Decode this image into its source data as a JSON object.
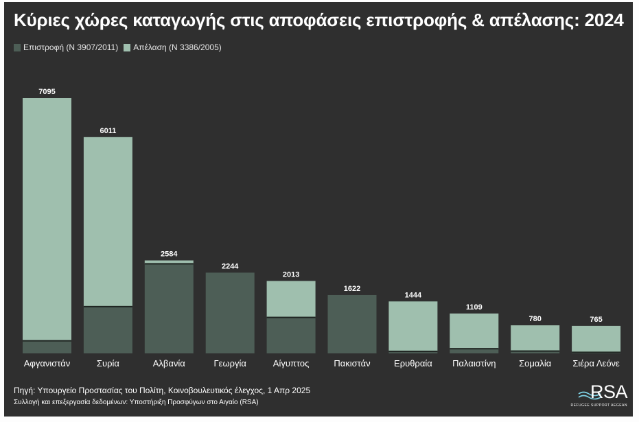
{
  "title": "Κύριες χώρες καταγωγής στις αποφάσεις επιστροφής & απέλασης: 2024",
  "colors": {
    "background": "#2f2f2f",
    "return": "#4d5e56",
    "deportation": "#9fbfae",
    "divider": "#1e2421"
  },
  "chart_data": {
    "type": "bar",
    "stacked": true,
    "categories": [
      "Αφγανιστάν",
      "Συρία",
      "Αλβανία",
      "Γεωργία",
      "Αίγυπτος",
      "Πακιστάν",
      "Ερυθραία",
      "Παλαιστίνη",
      "Σομαλία",
      "Σιέρα Λεόνε"
    ],
    "series": [
      {
        "name": "Επιστροφή (N 3907/2011)",
        "values": [
          350,
          1300,
          2490,
          2244,
          1000,
          1622,
          55,
          130,
          65,
          30
        ]
      },
      {
        "name": "Απέλαση (N 3386/2005)",
        "values": [
          6745,
          4711,
          94,
          0,
          1013,
          0,
          1389,
          979,
          715,
          735
        ]
      }
    ],
    "totals": [
      7095,
      6011,
      2584,
      2244,
      2013,
      1622,
      1444,
      1109,
      780,
      765
    ],
    "ylim": [
      0,
      7095
    ],
    "grid": false,
    "legend_position": "top-left"
  },
  "footer": {
    "source": "Πηγή: Υπουργείο Προστασίας του Πολίτη, Κοινοβουλευτικός έλεγχος, 1 Απρ 2025",
    "credit": "Συλλογή και επεξεργασία δεδομένων: Υποστήριξη Προσφύγων στο Αιγαίο (RSA)"
  },
  "logo": {
    "text": "RSA",
    "subtitle": "REFUGEE SUPPORT AEGEAN",
    "icon": "wave-icon"
  }
}
